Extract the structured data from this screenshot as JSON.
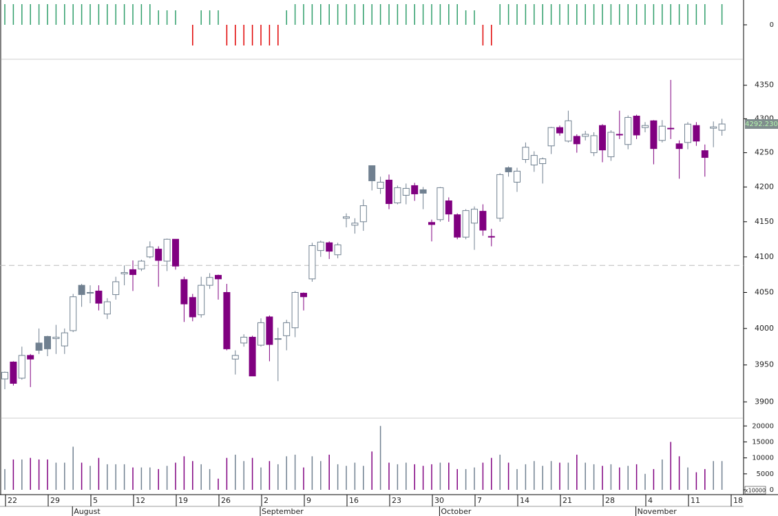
{
  "chart_data": [
    {
      "type": "candlestick",
      "categories": [
        "22",
        null,
        null,
        null,
        null,
        "29",
        null,
        null,
        null,
        null,
        "5",
        null,
        null,
        null,
        null,
        "12",
        null,
        null,
        null,
        null,
        "19",
        null,
        null,
        null,
        null,
        "26",
        null,
        null,
        null,
        null,
        "2",
        null,
        null,
        null,
        null,
        "9",
        null,
        null,
        null,
        null,
        "16",
        null,
        null,
        null,
        null,
        "23",
        null,
        null,
        null,
        null,
        "30",
        null,
        null,
        null,
        null,
        "7",
        null,
        null,
        null,
        null,
        "14",
        null,
        null,
        null,
        null,
        "21",
        null,
        null,
        null,
        null,
        "28",
        null,
        null,
        null,
        null,
        "4",
        null,
        null,
        null,
        null,
        "11",
        null,
        null,
        null,
        null,
        "18"
      ],
      "month_categories": [
        null,
        null,
        null,
        null,
        null,
        null,
        null,
        null,
        "August",
        null,
        null,
        null,
        null,
        null,
        null,
        null,
        null,
        null,
        null,
        null,
        null,
        null,
        null,
        null,
        null,
        null,
        null,
        null,
        null,
        null,
        "September",
        null,
        null,
        null,
        null,
        null,
        null,
        null,
        null,
        null,
        null,
        null,
        null,
        null,
        null,
        null,
        null,
        null,
        null,
        null,
        null,
        "October",
        null,
        null,
        null,
        null,
        null,
        null,
        null,
        null,
        null,
        null,
        null,
        null,
        null,
        null,
        null,
        null,
        null,
        null,
        null,
        null,
        null,
        null,
        "November",
        null,
        null,
        null,
        null,
        null,
        null,
        null,
        null,
        null,
        null,
        null
      ],
      "open": [
        3931,
        3954,
        3932,
        3963,
        3980,
        3989,
        3986,
        3976,
        3997,
        4060,
        4049,
        4052,
        4020,
        4047,
        4076,
        4082,
        4083,
        4100,
        4111,
        4094,
        4125,
        4068,
        4043,
        4019,
        4060,
        4074,
        4050,
        3958,
        3980,
        3988,
        3977,
        4016,
        3985,
        3990,
        4001,
        4049,
        4069,
        4109,
        4120,
        4103,
        4155,
        4145,
        4150,
        4231,
        4198,
        4210,
        4177,
        4188,
        4202,
        4196,
        4149,
        4153,
        4180,
        4160,
        4128,
        4148,
        4165,
        4129,
        4155,
        4228,
        4207,
        4240,
        4232,
        4234,
        4260,
        4287,
        4267,
        4274,
        4274,
        4250,
        4290,
        4244,
        4277,
        4262,
        4304,
        4287,
        4297,
        4268,
        4286,
        4263,
        4265,
        4290,
        4253,
        4286,
        4283,
        null
      ],
      "high": [
        3941,
        3955,
        3975,
        3965,
        4000,
        3990,
        4005,
        4000,
        4048,
        4062,
        4060,
        4060,
        4042,
        4072,
        4088,
        4095,
        4096,
        4122,
        4115,
        4126,
        4125,
        4072,
        4048,
        4072,
        4077,
        4075,
        4062,
        3970,
        3992,
        3990,
        4014,
        4018,
        4001,
        4012,
        4052,
        4050,
        4120,
        4123,
        4122,
        4120,
        4162,
        4155,
        4182,
        4231,
        4215,
        4218,
        4202,
        4205,
        4206,
        4200,
        4153,
        4200,
        4185,
        4162,
        4168,
        4172,
        4175,
        4140,
        4220,
        4230,
        4228,
        4265,
        4252,
        4243,
        4288,
        4290,
        4312,
        4277,
        4282,
        4280,
        4292,
        4283,
        4312,
        4305,
        4306,
        4295,
        4298,
        4298,
        4358,
        4268,
        4295,
        4295,
        4262,
        4296,
        4300,
        null
      ],
      "low": [
        3917,
        3922,
        3930,
        3920,
        3965,
        3962,
        3965,
        3965,
        3995,
        4030,
        4035,
        4025,
        4013,
        4040,
        4060,
        4052,
        4080,
        4098,
        4058,
        4080,
        4082,
        4009,
        4010,
        4015,
        4055,
        4040,
        3970,
        3937,
        3975,
        3935,
        3975,
        3955,
        3928,
        3970,
        3988,
        4025,
        4065,
        4100,
        4097,
        4098,
        4142,
        4133,
        4137,
        4195,
        4190,
        4168,
        4175,
        4175,
        4180,
        4168,
        4122,
        4150,
        4150,
        4125,
        4125,
        4110,
        4130,
        4115,
        4150,
        4215,
        4193,
        4235,
        4222,
        4205,
        4248,
        4275,
        4265,
        4250,
        4268,
        4245,
        4236,
        4238,
        4270,
        4255,
        4270,
        4280,
        4233,
        4265,
        4270,
        4212,
        4255,
        4260,
        4215,
        4258,
        4275,
        null
      ],
      "close": [
        3940,
        3925,
        3963,
        3958,
        3970,
        3972,
        3988,
        3994,
        4044,
        4047,
        4050,
        4035,
        4037,
        4065,
        4078,
        4075,
        4094,
        4114,
        4095,
        4125,
        4087,
        4034,
        4016,
        4060,
        4071,
        4069,
        3972,
        3963,
        3988,
        3935,
        4008,
        3978,
        3986,
        4008,
        4050,
        4044,
        4116,
        4121,
        4108,
        4117,
        4157,
        4148,
        4173,
        4209,
        4207,
        4176,
        4199,
        4198,
        4190,
        4191,
        4146,
        4199,
        4161,
        4128,
        4166,
        4168,
        4138,
        4128,
        4218,
        4222,
        4223,
        4258,
        4246,
        4241,
        4287,
        4279,
        4297,
        4263,
        4277,
        4275,
        4254,
        4280,
        4276,
        4302,
        4276,
        4290,
        4256,
        4289,
        4285,
        4256,
        4292,
        4267,
        4243,
        4288,
        4292.23,
        null
      ],
      "colors": {
        "up": "#ffffff",
        "down": "#800080",
        "gap": "#708090",
        "outline": "#708090"
      },
      "ylim": [
        3880,
        4385
      ],
      "log_scale": true,
      "yticks": [
        3900,
        3950,
        4000,
        4050,
        4100,
        4150,
        4200,
        4250,
        4300,
        4350
      ],
      "reference_line": 4088,
      "last_price": {
        "value": 4292.23,
        "label": "4292.230"
      }
    },
    {
      "type": "bar",
      "values": [
        1,
        1,
        1,
        1,
        1,
        1,
        1,
        1,
        1,
        1,
        1,
        1,
        1,
        1,
        1,
        1,
        1,
        1,
        0.7,
        0.7,
        0.7,
        0,
        -1,
        0.7,
        0.7,
        0.7,
        -1,
        -1,
        -1,
        -1,
        -1,
        -1,
        -1,
        0.7,
        1,
        1,
        1,
        1,
        1,
        1,
        1,
        1,
        1,
        1,
        1,
        1,
        1,
        1,
        1,
        1,
        1,
        1,
        1,
        1,
        0.7,
        0.7,
        -1,
        -1,
        1,
        1,
        1,
        1,
        1,
        1,
        1,
        1,
        1,
        1,
        1,
        1,
        1,
        1,
        1,
        1,
        1,
        1,
        1,
        1,
        1,
        1,
        1,
        1,
        1,
        0,
        1,
        null
      ],
      "colors": {
        "positive": "#2e9e6a",
        "negative": "#e00000"
      },
      "ylim": [
        -1.2,
        1.2
      ],
      "yticks": [
        0
      ]
    },
    {
      "type": "bar",
      "values": [
        6500,
        9500,
        9500,
        10000,
        9500,
        9500,
        8500,
        8500,
        13500,
        8500,
        7500,
        10000,
        8000,
        8000,
        8000,
        7000,
        7000,
        7000,
        6500,
        7500,
        8500,
        10500,
        9000,
        8000,
        6500,
        3500,
        10000,
        11000,
        9000,
        10000,
        7000,
        9000,
        8000,
        10500,
        11000,
        7000,
        10500,
        9000,
        11000,
        8000,
        7500,
        8500,
        7500,
        12000,
        20000,
        8500,
        8000,
        8500,
        8000,
        7500,
        8000,
        8500,
        8500,
        6500,
        6500,
        7000,
        8500,
        10000,
        11000,
        8500,
        6500,
        8000,
        9000,
        7500,
        9000,
        8500,
        8500,
        11000,
        8500,
        8000,
        7500,
        8000,
        7000,
        7500,
        8000,
        5000,
        6500,
        9500,
        15000,
        10500,
        7000,
        5500,
        6500,
        9000,
        9000,
        null
      ],
      "ylim": [
        0,
        22000
      ],
      "yticks": [
        0,
        5000,
        10000,
        15000,
        20000
      ],
      "unit_label": "x10000"
    }
  ]
}
